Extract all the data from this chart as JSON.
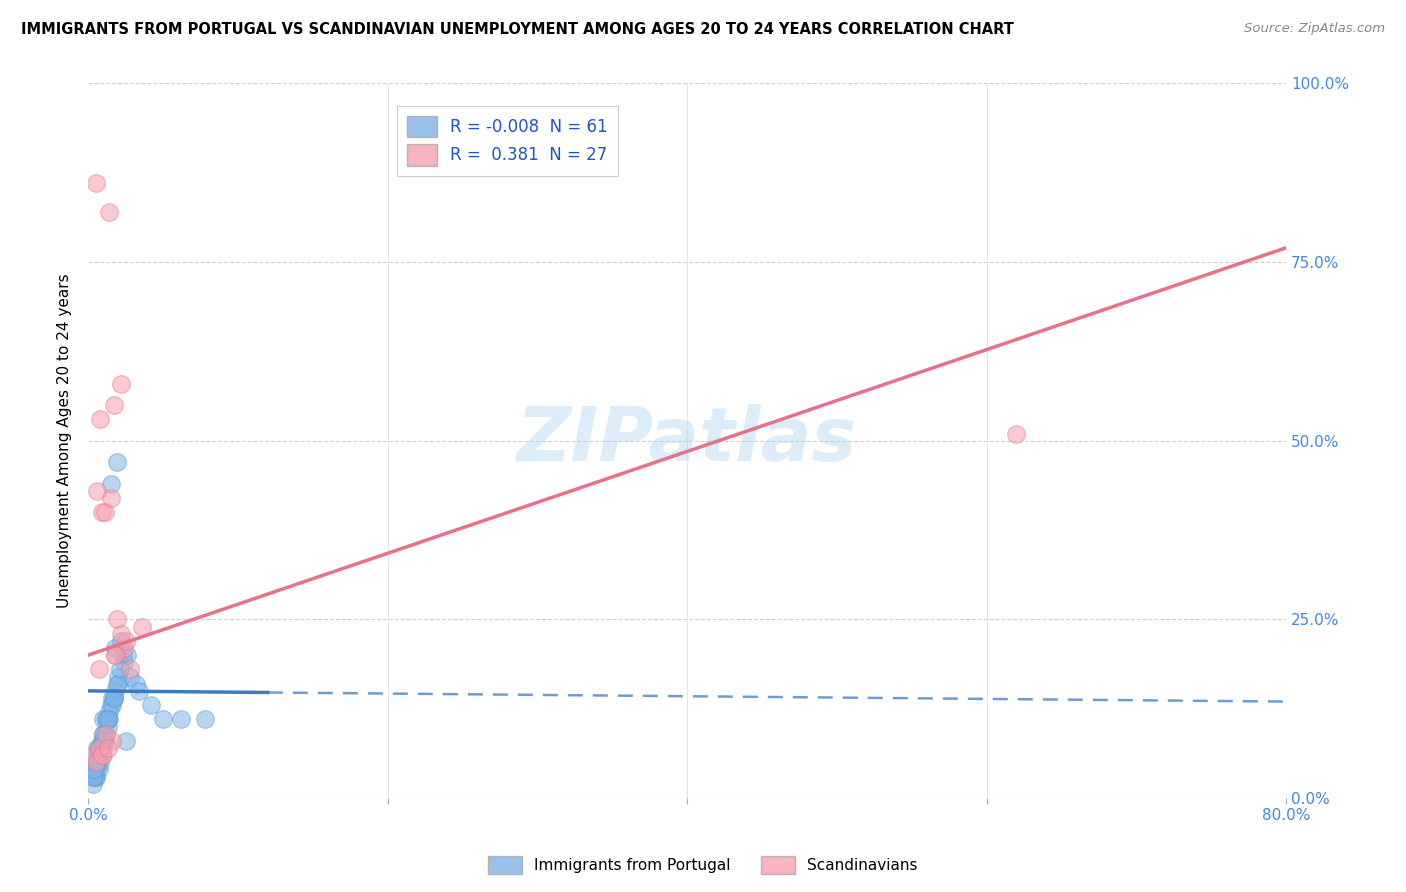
{
  "title": "IMMIGRANTS FROM PORTUGAL VS SCANDINAVIAN UNEMPLOYMENT AMONG AGES 20 TO 24 YEARS CORRELATION CHART",
  "source": "Source: ZipAtlas.com",
  "ylabel": "Unemployment Among Ages 20 to 24 years",
  "ytick_vals": [
    0,
    25,
    50,
    75,
    100
  ],
  "ytick_labels": [
    "0.0%",
    "25.0%",
    "50.0%",
    "75.0%",
    "100.0%"
  ],
  "xtick_vals": [
    0,
    20,
    40,
    60,
    80
  ],
  "xtick_labels": [
    "0.0%",
    "",
    "",
    "",
    "80.0%"
  ],
  "blue_color": "#7EB3E8",
  "blue_edge": "#5A9FD4",
  "pink_color": "#F5A0B0",
  "pink_edge": "#E8788A",
  "blue_line_color": "#3D7BBF",
  "pink_line_color": "#E8718A",
  "watermark": "ZIPatlas",
  "xlim": [
    0,
    80
  ],
  "ylim": [
    0,
    100
  ],
  "legend1_r": "-0.008",
  "legend1_n": "61",
  "legend2_r": "0.381",
  "legend2_n": "27",
  "blue_line_y0": 15.0,
  "blue_line_y1": 13.5,
  "pink_line_y0": 20.0,
  "pink_line_y1": 77.0,
  "blue_solid_x_end": 12,
  "blue_scatter_x": [
    1.5,
    1.9,
    0.6,
    1.0,
    1.8,
    0.4,
    0.5,
    0.7,
    0.8,
    1.1,
    1.3,
    1.0,
    1.7,
    2.8,
    3.2,
    0.3,
    0.5,
    0.6,
    0.7,
    0.9,
    1.2,
    1.5,
    1.8,
    2.0,
    2.4,
    0.4,
    0.6,
    0.9,
    1.3,
    1.6,
    2.0,
    2.3,
    0.5,
    0.8,
    1.1,
    1.4,
    1.7,
    2.2,
    0.4,
    0.7,
    1.0,
    1.4,
    1.9,
    2.6,
    3.4,
    4.2,
    5.0,
    6.2,
    7.8,
    0.3,
    0.6,
    0.9,
    1.2,
    1.6,
    2.1,
    0.4,
    0.7,
    1.0,
    1.3,
    1.7,
    2.5
  ],
  "blue_scatter_y": [
    44,
    47,
    7,
    11,
    21,
    4,
    3,
    4,
    5,
    8,
    10,
    8,
    14,
    17,
    16,
    2,
    3,
    5,
    6,
    8,
    11,
    13,
    15,
    17,
    19,
    4,
    5,
    7,
    11,
    14,
    16,
    20,
    4,
    7,
    9,
    11,
    14,
    22,
    3,
    6,
    9,
    12,
    16,
    20,
    15,
    13,
    11,
    11,
    11,
    3,
    6,
    8,
    11,
    13,
    18,
    4,
    7,
    9,
    11,
    14,
    8
  ],
  "pink_scatter_x": [
    0.5,
    1.4,
    0.8,
    1.7,
    2.2,
    0.6,
    0.9,
    1.1,
    1.5,
    1.9,
    2.4,
    0.7,
    1.0,
    1.6,
    0.4,
    0.7,
    1.2,
    1.8,
    2.5,
    3.6,
    62.0,
    0.5,
    0.9,
    1.3,
    1.8,
    2.2,
    2.8
  ],
  "pink_scatter_y": [
    86,
    82,
    53,
    55,
    58,
    43,
    40,
    40,
    42,
    25,
    21,
    18,
    6,
    8,
    6,
    7,
    9,
    20,
    22,
    24,
    51,
    5,
    6,
    7,
    20,
    23,
    18
  ]
}
